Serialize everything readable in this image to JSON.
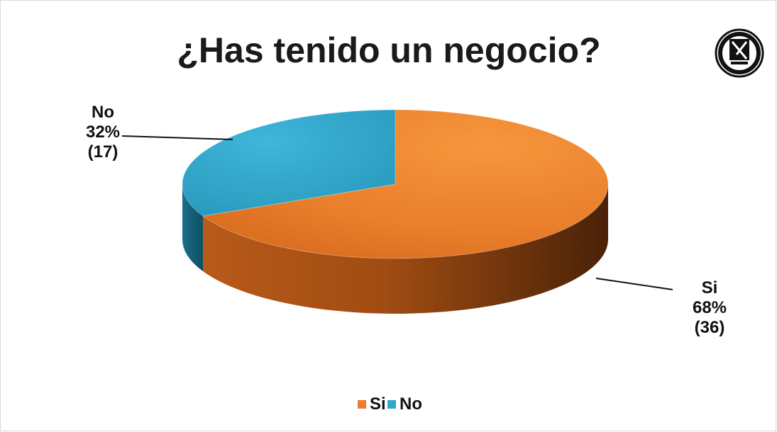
{
  "chart_data": {
    "type": "pie",
    "title": "¿Has tenido un negocio?",
    "categories": [
      "Si",
      "No"
    ],
    "values": [
      36,
      17
    ],
    "percent_labels": [
      "68%",
      "32%"
    ],
    "count_labels": [
      "(36)",
      "(17)"
    ],
    "colors": [
      "#ED7D31",
      "#31A7CC"
    ],
    "style": "3d-pie",
    "legend_position": "bottom",
    "legend_entries": [
      "Si",
      "No"
    ]
  },
  "logo": {
    "icon": "university-seal-icon",
    "text": "UNIVERSIDAD AUTONOMA DE NUEVO LEON"
  }
}
